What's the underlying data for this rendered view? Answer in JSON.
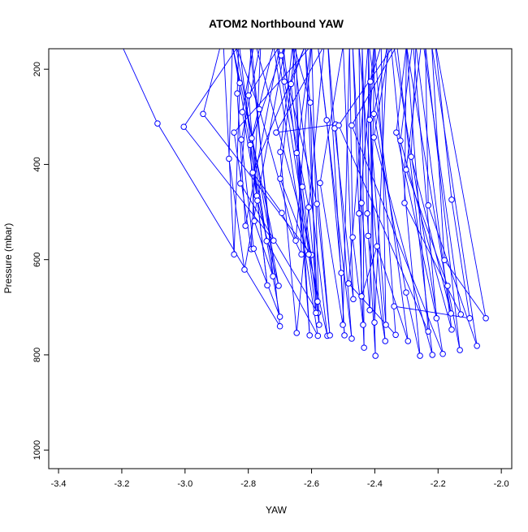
{
  "chart_data": {
    "type": "line",
    "title": "ATOM2 Northbound YAW",
    "xlabel": "YAW",
    "ylabel": "Pressure (mbar)",
    "xlim": [
      -3.431,
      -1.967
    ],
    "ylim": [
      1039,
      157
    ],
    "y_reversed": true,
    "xticks": [
      -3.4,
      -3.2,
      -3.0,
      -2.8,
      -2.6,
      -2.4,
      -2.2,
      -2.0
    ],
    "xtick_labels": [
      "-3.4",
      "-3.2",
      "-3.0",
      "-2.8",
      "-2.6",
      "-2.4",
      "-2.2",
      "-2.0"
    ],
    "yticks": [
      200,
      400,
      600,
      800,
      1000
    ],
    "ytick_labels": [
      "200",
      "400",
      "600",
      "800",
      "1000"
    ],
    "grid": false,
    "color": "#0000ff",
    "marker": "open-circle",
    "sequence": [
      [
        -3.2,
        150
      ],
      [
        -3.087,
        314
      ],
      [
        -2.7,
        740
      ],
      [
        -2.8,
        120
      ],
      [
        -3.004,
        321
      ],
      [
        -2.72,
        560
      ],
      [
        -2.85,
        150
      ],
      [
        -2.827,
        229
      ],
      [
        -2.845,
        589
      ],
      [
        -2.88,
        130
      ],
      [
        -2.943,
        294
      ],
      [
        -2.6,
        590
      ],
      [
        -2.78,
        140
      ],
      [
        -2.819,
        290
      ],
      [
        -2.773,
        466
      ],
      [
        -2.74,
        654
      ],
      [
        -2.83,
        140
      ],
      [
        -2.835,
        251
      ],
      [
        -2.809,
        529
      ],
      [
        -2.7,
        150
      ],
      [
        -2.799,
        255
      ],
      [
        -2.771,
        476
      ],
      [
        -2.704,
        655
      ],
      [
        -2.84,
        150
      ],
      [
        -2.765,
        284
      ],
      [
        -2.65,
        560
      ],
      [
        -2.6,
        150
      ],
      [
        -2.845,
        333
      ],
      [
        -2.791,
        578
      ],
      [
        -2.76,
        140
      ],
      [
        -2.822,
        348
      ],
      [
        -2.783,
        577
      ],
      [
        -2.7,
        720
      ],
      [
        -2.85,
        150
      ],
      [
        -2.861,
        388
      ],
      [
        -2.812,
        621
      ],
      [
        -2.68,
        140
      ],
      [
        -2.789,
        345
      ],
      [
        -2.742,
        561
      ],
      [
        -2.58,
        760
      ],
      [
        -2.72,
        150
      ],
      [
        -2.794,
        359
      ],
      [
        -2.781,
        519
      ],
      [
        -2.722,
        635
      ],
      [
        -2.79,
        150
      ],
      [
        -2.825,
        440
      ],
      [
        -2.58,
        712
      ],
      [
        -2.62,
        150
      ],
      [
        -2.786,
        417
      ],
      [
        -2.694,
        502
      ],
      [
        -2.632,
        589
      ],
      [
        -2.65,
        140
      ],
      [
        -2.699,
        430
      ],
      [
        -2.609,
        589
      ],
      [
        -2.55,
        760
      ],
      [
        -2.66,
        140
      ],
      [
        -2.604,
        270
      ],
      [
        -2.586,
        712
      ],
      [
        -2.69,
        150
      ],
      [
        -2.686,
        226
      ],
      [
        -2.609,
        490
      ],
      [
        -2.581,
        688
      ],
      [
        -2.71,
        150
      ],
      [
        -2.696,
        171
      ],
      [
        -2.583,
        483
      ],
      [
        -2.542,
        759
      ],
      [
        -2.62,
        150
      ],
      [
        -2.665,
        231
      ],
      [
        -2.629,
        447
      ],
      [
        -2.576,
        737
      ],
      [
        -2.6,
        140
      ],
      [
        -2.647,
        376
      ],
      [
        -2.606,
        759
      ],
      [
        -2.66,
        150
      ],
      [
        -2.699,
        374
      ],
      [
        -2.647,
        754
      ],
      [
        -2.56,
        150
      ],
      [
        -2.712,
        333
      ],
      [
        -2.524,
        316
      ],
      [
        -2.473,
        766
      ],
      [
        -2.58,
        150
      ],
      [
        -2.552,
        307
      ],
      [
        -2.506,
        628
      ],
      [
        -2.496,
        759
      ],
      [
        -2.55,
        130
      ],
      [
        -2.527,
        324
      ],
      [
        -2.468,
        683
      ],
      [
        -2.5,
        150
      ],
      [
        -2.573,
        439
      ],
      [
        -2.501,
        737
      ],
      [
        -2.48,
        150
      ],
      [
        -2.47,
        553
      ],
      [
        -2.437,
        737
      ],
      [
        -2.47,
        150
      ],
      [
        -2.442,
        481
      ],
      [
        -2.416,
        706
      ],
      [
        -2.4,
        130
      ],
      [
        -2.45,
        503
      ],
      [
        -2.434,
        785
      ],
      [
        -2.44,
        150
      ],
      [
        -2.424,
        503
      ],
      [
        -2.398,
        802
      ],
      [
        -2.42,
        150
      ],
      [
        -2.421,
        550
      ],
      [
        -2.367,
        771
      ],
      [
        -2.45,
        150
      ],
      [
        -2.442,
        677
      ],
      [
        -2.393,
        572
      ],
      [
        -2.295,
        771
      ],
      [
        -2.42,
        140
      ],
      [
        -2.483,
        650
      ],
      [
        -2.334,
        758
      ],
      [
        -2.4,
        150
      ],
      [
        -2.416,
        306
      ],
      [
        -2.365,
        737
      ],
      [
        -2.38,
        150
      ],
      [
        -2.414,
        226
      ],
      [
        -2.401,
        732
      ],
      [
        -2.36,
        150
      ],
      [
        -2.403,
        294
      ],
      [
        -2.301,
        669
      ],
      [
        -2.257,
        802
      ],
      [
        -2.35,
        140
      ],
      [
        -2.403,
        343
      ],
      [
        -2.218,
        800
      ],
      [
        -2.33,
        150
      ],
      [
        -2.473,
        318
      ],
      [
        -2.185,
        798
      ],
      [
        -2.34,
        150
      ],
      [
        -2.514,
        318
      ],
      [
        -2.231,
        751
      ],
      [
        -2.3,
        150
      ],
      [
        -2.332,
        333
      ],
      [
        -2.205,
        723
      ],
      [
        -2.28,
        140
      ],
      [
        -2.319,
        350
      ],
      [
        -2.157,
        747
      ],
      [
        -2.27,
        150
      ],
      [
        -2.285,
        384
      ],
      [
        -2.159,
        713
      ],
      [
        -2.3,
        150
      ],
      [
        -2.306,
        481
      ],
      [
        -2.128,
        715
      ],
      [
        -2.25,
        130
      ],
      [
        -2.301,
        411
      ],
      [
        -2.17,
        655
      ],
      [
        -2.131,
        790
      ],
      [
        -2.24,
        150
      ],
      [
        -2.231,
        486
      ],
      [
        -2.077,
        781
      ],
      [
        -2.22,
        150
      ],
      [
        -2.18,
        601
      ],
      [
        -2.049,
        723
      ],
      [
        -2.21,
        140
      ],
      [
        -2.157,
        474
      ],
      [
        -2.1,
        723
      ],
      [
        -2.339,
        698
      ]
    ]
  }
}
